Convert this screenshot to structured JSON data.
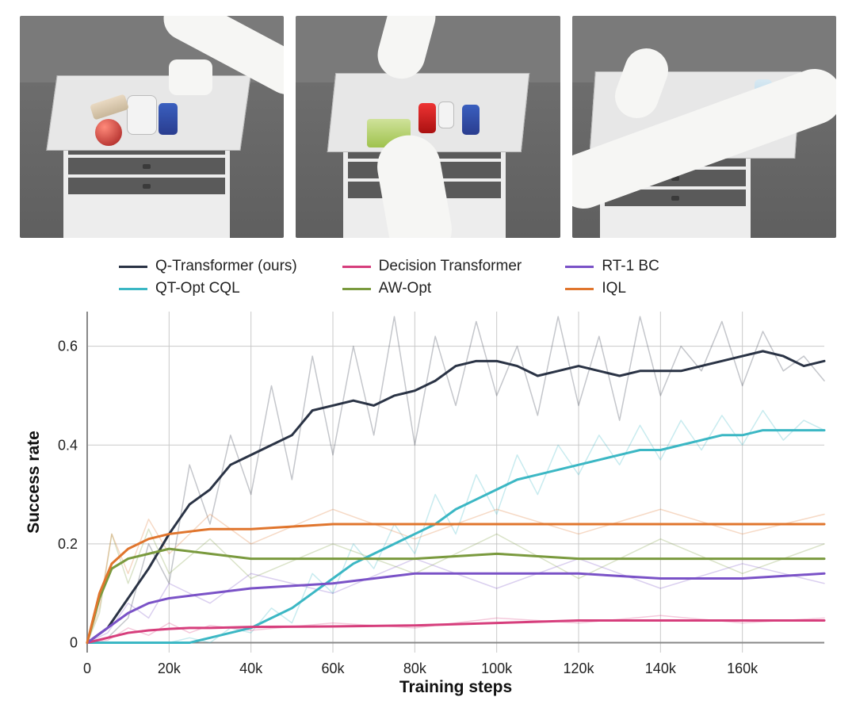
{
  "images": {
    "count": 3,
    "description": "Three simulated robot-arm tabletop scenes with small objects on a white drawer table against a grey background."
  },
  "chart": {
    "type": "line",
    "xlabel": "Training steps",
    "ylabel": "Success rate",
    "label_fontsize": 21,
    "tick_fontsize": 18,
    "background_color": "#ffffff",
    "grid_color": "#c9c9c9",
    "axis_color": "#888888",
    "xlim": [
      0,
      180000
    ],
    "ylim": [
      -0.02,
      0.67
    ],
    "xticks": [
      0,
      20000,
      40000,
      60000,
      80000,
      100000,
      120000,
      140000,
      160000
    ],
    "xtick_labels": [
      "0",
      "20k",
      "40k",
      "60k",
      "80k",
      "100k",
      "120k",
      "140k",
      "160k"
    ],
    "yticks": [
      0,
      0.2,
      0.4,
      0.6
    ],
    "ytick_labels": [
      "0",
      "0.2",
      "0.4",
      "0.6"
    ],
    "line_width_main": 3,
    "line_width_raw": 1.5,
    "raw_opacity": 0.28,
    "series": [
      {
        "name": "Q-Transformer (ours)",
        "color": "#2a3345",
        "x": [
          0,
          5000,
          10000,
          15000,
          20000,
          25000,
          30000,
          35000,
          40000,
          45000,
          50000,
          55000,
          60000,
          65000,
          70000,
          75000,
          80000,
          85000,
          90000,
          95000,
          100000,
          105000,
          110000,
          115000,
          120000,
          125000,
          130000,
          135000,
          140000,
          145000,
          150000,
          155000,
          160000,
          165000,
          170000,
          175000,
          180000
        ],
        "y": [
          0.0,
          0.03,
          0.09,
          0.15,
          0.22,
          0.28,
          0.31,
          0.36,
          0.38,
          0.4,
          0.42,
          0.47,
          0.48,
          0.49,
          0.48,
          0.5,
          0.51,
          0.53,
          0.56,
          0.57,
          0.57,
          0.56,
          0.54,
          0.55,
          0.56,
          0.55,
          0.54,
          0.55,
          0.55,
          0.55,
          0.56,
          0.57,
          0.58,
          0.59,
          0.58,
          0.56,
          0.57
        ],
        "y_raw": [
          0.0,
          0.01,
          0.05,
          0.2,
          0.12,
          0.36,
          0.24,
          0.42,
          0.3,
          0.52,
          0.33,
          0.58,
          0.38,
          0.6,
          0.42,
          0.66,
          0.4,
          0.62,
          0.48,
          0.65,
          0.5,
          0.6,
          0.46,
          0.66,
          0.48,
          0.62,
          0.45,
          0.66,
          0.5,
          0.6,
          0.55,
          0.65,
          0.52,
          0.63,
          0.55,
          0.58,
          0.53
        ]
      },
      {
        "name": "QT-Opt CQL",
        "color": "#3bb7c4",
        "x": [
          0,
          5000,
          10000,
          15000,
          20000,
          25000,
          30000,
          35000,
          40000,
          45000,
          50000,
          55000,
          60000,
          65000,
          70000,
          75000,
          80000,
          85000,
          90000,
          95000,
          100000,
          105000,
          110000,
          115000,
          120000,
          125000,
          130000,
          135000,
          140000,
          145000,
          150000,
          155000,
          160000,
          165000,
          170000,
          175000,
          180000
        ],
        "y": [
          0.0,
          0.0,
          0.0,
          0.0,
          0.0,
          0.0,
          0.01,
          0.02,
          0.03,
          0.05,
          0.07,
          0.1,
          0.13,
          0.16,
          0.18,
          0.2,
          0.22,
          0.24,
          0.27,
          0.29,
          0.31,
          0.33,
          0.34,
          0.35,
          0.36,
          0.37,
          0.38,
          0.39,
          0.39,
          0.4,
          0.41,
          0.42,
          0.42,
          0.43,
          0.43,
          0.43,
          0.43
        ],
        "y_raw": [
          0.0,
          0.0,
          0.0,
          0.0,
          0.0,
          0.01,
          0.0,
          0.03,
          0.02,
          0.07,
          0.04,
          0.14,
          0.1,
          0.2,
          0.15,
          0.24,
          0.18,
          0.3,
          0.22,
          0.34,
          0.26,
          0.38,
          0.3,
          0.4,
          0.34,
          0.42,
          0.36,
          0.44,
          0.37,
          0.45,
          0.39,
          0.46,
          0.4,
          0.47,
          0.41,
          0.45,
          0.43
        ]
      },
      {
        "name": "Decision Transformer",
        "color": "#d63e7c",
        "x": [
          0,
          5000,
          10000,
          15000,
          20000,
          25000,
          30000,
          40000,
          60000,
          80000,
          100000,
          120000,
          140000,
          160000,
          180000
        ],
        "y": [
          0.0,
          0.01,
          0.02,
          0.025,
          0.028,
          0.03,
          0.03,
          0.032,
          0.033,
          0.035,
          0.04,
          0.045,
          0.045,
          0.045,
          0.045
        ],
        "y_raw": [
          0.0,
          0.005,
          0.03,
          0.015,
          0.04,
          0.02,
          0.035,
          0.025,
          0.04,
          0.03,
          0.05,
          0.04,
          0.055,
          0.04,
          0.05
        ]
      },
      {
        "name": "AW-Opt",
        "color": "#7a9a3e",
        "x": [
          0,
          3000,
          6000,
          10000,
          15000,
          20000,
          30000,
          40000,
          60000,
          80000,
          100000,
          120000,
          140000,
          160000,
          180000
        ],
        "y": [
          0.0,
          0.09,
          0.15,
          0.17,
          0.18,
          0.19,
          0.18,
          0.17,
          0.17,
          0.17,
          0.18,
          0.17,
          0.17,
          0.17,
          0.17
        ],
        "y_raw": [
          0.0,
          0.06,
          0.22,
          0.12,
          0.23,
          0.14,
          0.21,
          0.13,
          0.2,
          0.14,
          0.22,
          0.13,
          0.21,
          0.14,
          0.2
        ]
      },
      {
        "name": "RT-1 BC",
        "color": "#7a52c7",
        "x": [
          0,
          5000,
          10000,
          15000,
          20000,
          30000,
          40000,
          60000,
          80000,
          100000,
          120000,
          140000,
          160000,
          180000
        ],
        "y": [
          0.0,
          0.03,
          0.06,
          0.08,
          0.09,
          0.1,
          0.11,
          0.12,
          0.14,
          0.14,
          0.14,
          0.13,
          0.13,
          0.14
        ],
        "y_raw": [
          0.0,
          0.02,
          0.08,
          0.05,
          0.12,
          0.08,
          0.14,
          0.1,
          0.17,
          0.11,
          0.17,
          0.11,
          0.16,
          0.12
        ]
      },
      {
        "name": "IQL",
        "color": "#e0752d",
        "x": [
          0,
          3000,
          6000,
          10000,
          15000,
          20000,
          30000,
          40000,
          60000,
          80000,
          100000,
          120000,
          140000,
          160000,
          180000
        ],
        "y": [
          0.0,
          0.1,
          0.16,
          0.19,
          0.21,
          0.22,
          0.23,
          0.23,
          0.24,
          0.24,
          0.24,
          0.24,
          0.24,
          0.24,
          0.24
        ],
        "y_raw": [
          0.0,
          0.07,
          0.22,
          0.14,
          0.25,
          0.18,
          0.26,
          0.2,
          0.27,
          0.21,
          0.27,
          0.22,
          0.27,
          0.22,
          0.26
        ]
      }
    ],
    "legend": {
      "order": [
        "Q-Transformer (ours)",
        "Decision Transformer",
        "RT-1 BC",
        "QT-Opt CQL",
        "AW-Opt",
        "IQL"
      ],
      "fontsize": 19
    }
  }
}
